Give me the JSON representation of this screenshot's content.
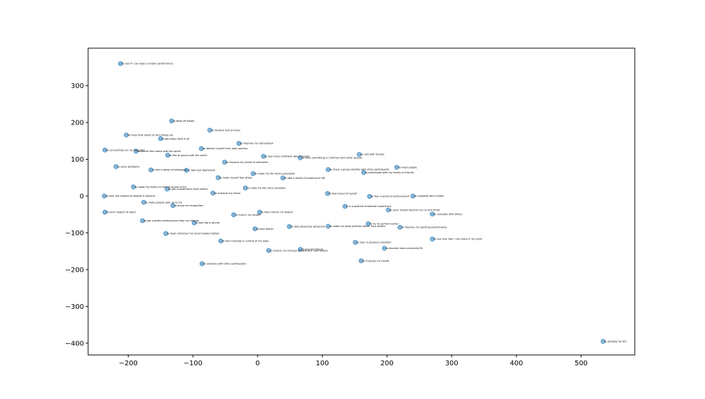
{
  "chart_data": {
    "type": "scatter",
    "title": "",
    "xlabel": "",
    "ylabel": "",
    "xlim": [
      -262,
      583
    ],
    "ylim": [
      -432,
      402
    ],
    "grid": false,
    "xticks": [
      -200,
      -100,
      0,
      100,
      200,
      300,
      400,
      500
    ],
    "yticks": [
      -400,
      -300,
      -200,
      -100,
      0,
      100,
      200,
      300
    ],
    "xtick_labels": [
      "−200",
      "−100",
      "0",
      "100",
      "200",
      "300",
      "400",
      "500"
    ],
    "ytick_labels": [
      "−400",
      "−300",
      "−200",
      "−100",
      "0",
      "100",
      "200",
      "300"
    ],
    "points": [
      {
        "x": -212,
        "y": 360,
        "label": "to see if I can beat a certain performance"
      },
      {
        "x": -133,
        "y": 204,
        "label": "to blow off steam"
      },
      {
        "x": -74,
        "y": 179,
        "label": "to become less anxious"
      },
      {
        "x": -203,
        "y": 166,
        "label": "to have time alone to sort things out"
      },
      {
        "x": -150,
        "y": 156,
        "label": "to get away from it all"
      },
      {
        "x": -29,
        "y": 143,
        "label": "to improve my self-esteem"
      },
      {
        "x": -236,
        "y": 125,
        "label": "to concentrate on my thoughts"
      },
      {
        "x": -188,
        "y": 122,
        "label": "to spend time alone with the world"
      },
      {
        "x": -87,
        "y": 129,
        "label": "to distract myself from daily worries"
      },
      {
        "x": -139,
        "y": 111,
        "label": "to feel at peace with the world"
      },
      {
        "x": 9,
        "y": 108,
        "label": "to feel more confident about myself"
      },
      {
        "x": 66,
        "y": 104,
        "label": "to have something in common with other people"
      },
      {
        "x": 157,
        "y": 113,
        "label": "to visit with friends"
      },
      {
        "x": -51,
        "y": 92,
        "label": "to improve my sense of self-worth"
      },
      {
        "x": -219,
        "y": 80,
        "label": "to solve problems"
      },
      {
        "x": -165,
        "y": 71,
        "label": "to feel a sense of belonging"
      },
      {
        "x": -110,
        "y": 70,
        "label": "to feel less depressed"
      },
      {
        "x": 109,
        "y": 72,
        "label": "to share a group identity with other participants"
      },
      {
        "x": 215,
        "y": 78,
        "label": "to meet people"
      },
      {
        "x": 164,
        "y": 64,
        "label": "to participate with my family or friends"
      },
      {
        "x": -7,
        "y": 61,
        "label": "to make my life more purposeful"
      },
      {
        "x": -61,
        "y": 50,
        "label": "to make myself feel whole"
      },
      {
        "x": 39,
        "y": 49,
        "label": "to add a sense of meaning to life"
      },
      {
        "x": -192,
        "y": 25,
        "label": "to make my family or friends proud of me"
      },
      {
        "x": -140,
        "y": 19,
        "label": "to get compliments from others"
      },
      {
        "x": -19,
        "y": 22,
        "label": "to make my life more complete"
      },
      {
        "x": -69,
        "y": 8,
        "label": "to improve my mood"
      },
      {
        "x": 108,
        "y": 7,
        "label": "to feel proud of myself"
      },
      {
        "x": -237,
        "y": 0,
        "label": "to earn the respect of people in general"
      },
      {
        "x": 173,
        "y": -1,
        "label": "to feel a sense of achievement"
      },
      {
        "x": 240,
        "y": 0,
        "label": "to compete with myself"
      },
      {
        "x": -176,
        "y": -17,
        "label": "to make people look up to me"
      },
      {
        "x": -131,
        "y": -26,
        "label": "to bring me recognition"
      },
      {
        "x": 135,
        "y": -28,
        "label": "it is a positive emotional experience"
      },
      {
        "x": 202,
        "y": -38,
        "label": "to push myself beyond my current limits"
      },
      {
        "x": -236,
        "y": -44,
        "label": "to earn respect of peers"
      },
      {
        "x": 3,
        "y": -44,
        "label": "to help control my weight"
      },
      {
        "x": -37,
        "y": -51,
        "label": "to reduce my weight"
      },
      {
        "x": 270,
        "y": -49,
        "label": "to compete with others"
      },
      {
        "x": -178,
        "y": -67,
        "label": "to get a better performance than my friends"
      },
      {
        "x": -98,
        "y": -73,
        "label": "to feel like a winner"
      },
      {
        "x": 171,
        "y": -75,
        "label": "to try to perform better"
      },
      {
        "x": 49,
        "y": -83,
        "label": "to stay physically attractive"
      },
      {
        "x": 109,
        "y": -82,
        "label": "to make my body perform better than before"
      },
      {
        "x": 220,
        "y": -85,
        "label": "to improve my sporting performance"
      },
      {
        "x": -4,
        "y": -89,
        "label": "to look leaner"
      },
      {
        "x": -142,
        "y": -102,
        "label": "to beat someone I've never beaten before"
      },
      {
        "x": 270,
        "y": -117,
        "label": "to see how high I can place in my sport"
      },
      {
        "x": -57,
        "y": -122,
        "label": "to feel mentally in control of my body"
      },
      {
        "x": 151,
        "y": -126,
        "label": "to stay in physical condition"
      },
      {
        "x": 196,
        "y": -142,
        "label": "to become more physically fit"
      },
      {
        "x": 66,
        "y": -145,
        "label": "to prevent illness"
      },
      {
        "x": 17,
        "y": -148,
        "label": "to reduce my chances of having a heart attack"
      },
      {
        "x": 160,
        "y": -176,
        "label": "to improve my health"
      },
      {
        "x": -86,
        "y": -184,
        "label": "to socialize with other participants"
      },
      {
        "x": 534,
        "y": -395,
        "label": "to prolong my life"
      }
    ]
  }
}
